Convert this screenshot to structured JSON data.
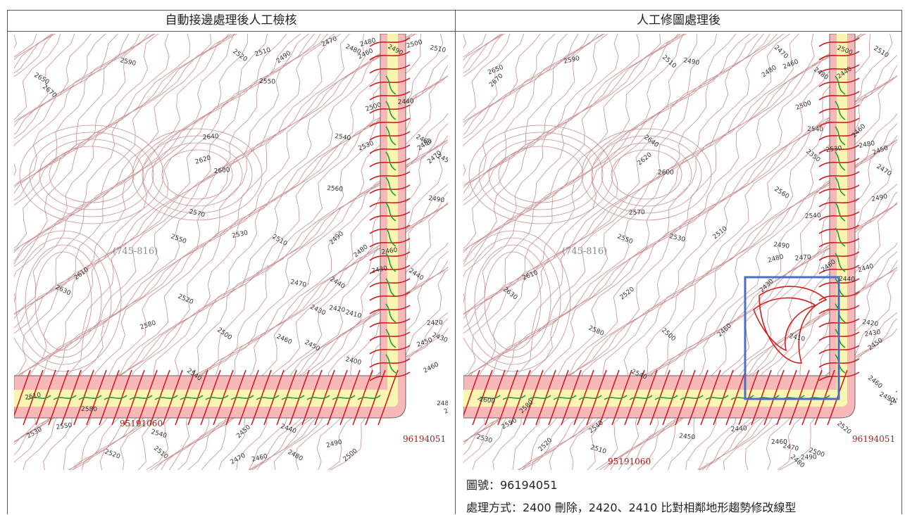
{
  "table": {
    "header_left": "自動接邊處理後人工檢核",
    "header_right": "人工修圖處理後",
    "caption_map_no": "圖號：96194051",
    "caption_method": "處理方式：2400 刪除，2420、2410 比對相鄰地形趨勢修改線型"
  },
  "colors": {
    "minor_contour": "#c98e8e",
    "major_contour": "#d21d1d",
    "buffer_fill": "#f6b8b8",
    "overlap_fill": "#fbf5b2",
    "green_line": "#1c9b3b",
    "highlight_box": "#4a6fc7",
    "sheet_border": "#666666"
  },
  "maps": [
    {
      "id": "left",
      "sheet_labels": [
        "(745-816)",
        "95191060",
        "96194051"
      ],
      "contour_labels": [
        "2590",
        "2520",
        "2510",
        "2490",
        "2470",
        "2480",
        "2460",
        "2480",
        "2490",
        "2500",
        "2510",
        "2650",
        "2670",
        "2550",
        "2500",
        "2440",
        "2640",
        "2540",
        "2530",
        "2460",
        "2480",
        "2450",
        "2470",
        "2620",
        "2600",
        "2560",
        "2490",
        "2570",
        "2550",
        "2530",
        "2510",
        "2490",
        "2480",
        "2460",
        "2440",
        "2610",
        "2630",
        "2470",
        "2440",
        "2430",
        "2520",
        "2430",
        "2420",
        "2410",
        "2580",
        "2500",
        "2460",
        "2450",
        "2400",
        "2420",
        "2430",
        "2450",
        "2460",
        "2480",
        "2500",
        "2610",
        "2580",
        "2540",
        "2550",
        "2530",
        "2540",
        "2520",
        "2510",
        "2450",
        "2440",
        "2470",
        "2460",
        "2480",
        "2490",
        "2500"
      ]
    },
    {
      "id": "right",
      "sheet_labels": [
        "(745-816)",
        "95191060",
        "96194051"
      ],
      "contour_labels": [
        "2590",
        "2510",
        "2490",
        "2470",
        "2460",
        "2480",
        "2500",
        "2510",
        "2650",
        "2670",
        "2480",
        "2440",
        "2500",
        "2540",
        "2640",
        "2350",
        "2530",
        "2460",
        "2480",
        "2450",
        "2470",
        "2620",
        "2600",
        "2560",
        "2490",
        "2570",
        "2540",
        "2550",
        "2530",
        "2510",
        "2490",
        "2470",
        "2460",
        "2440",
        "2610",
        "2630",
        "2480",
        "2440",
        "2430",
        "2520",
        "2410",
        "2580",
        "2500",
        "2460",
        "2420",
        "2430",
        "2450",
        "2460",
        "2490",
        "2480",
        "2500",
        "2600",
        "2580",
        "2540",
        "2550",
        "2530",
        "2540",
        "2520",
        "2510",
        "2450",
        "2440",
        "2460",
        "2470",
        "2480",
        "2490",
        "2500",
        "2520"
      ]
    }
  ]
}
